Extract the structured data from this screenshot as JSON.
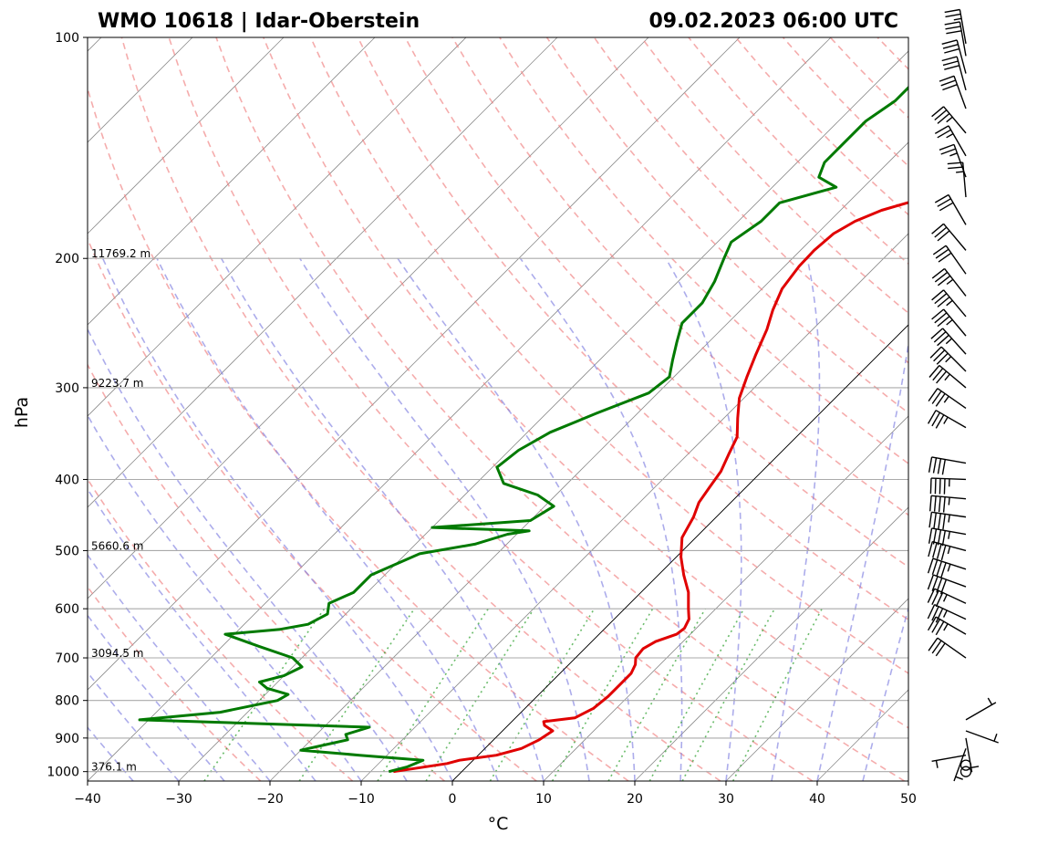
{
  "chart_data": {
    "type": "line",
    "title_left": "WMO 10618 | Idar-Oberstein",
    "title_right": "09.02.2023 06:00 UTC",
    "xlabel": "°C",
    "ylabel": "hPa",
    "xlim": [
      -40,
      50
    ],
    "ylim": [
      1030,
      100
    ],
    "x_ticks": [
      "−40",
      "−30",
      "−20",
      "−10",
      "0",
      "10",
      "20",
      "30",
      "40",
      "50"
    ],
    "x_tick_values": [
      -40,
      -30,
      -20,
      -10,
      0,
      10,
      20,
      30,
      40,
      50
    ],
    "y_ticks": [
      "1000",
      "900",
      "800",
      "700",
      "600",
      "500",
      "400",
      "300",
      "200",
      "100"
    ],
    "y_tick_values": [
      1000,
      900,
      800,
      700,
      600,
      500,
      400,
      300,
      200,
      100
    ],
    "height_labels": [
      {
        "p": 200,
        "text": "11769.2 m"
      },
      {
        "p": 300,
        "text": "9223.7 m"
      },
      {
        "p": 500,
        "text": "5660.6 m"
      },
      {
        "p": 700,
        "text": "3094.5 m"
      },
      {
        "p": 1000,
        "text": "376.1 m"
      }
    ],
    "series": [
      {
        "name": "Temperature",
        "color": "#e00000",
        "points": [
          [
            1000,
            -7.5
          ],
          [
            990,
            -5.5
          ],
          [
            975,
            -2.5
          ],
          [
            965,
            -1.5
          ],
          [
            950,
            2
          ],
          [
            930,
            4
          ],
          [
            905,
            5
          ],
          [
            880,
            5.5
          ],
          [
            865,
            4
          ],
          [
            855,
            3.5
          ],
          [
            845,
            6.5
          ],
          [
            820,
            7.5
          ],
          [
            790,
            7.8
          ],
          [
            760,
            7.8
          ],
          [
            735,
            7.8
          ],
          [
            715,
            7.3
          ],
          [
            700,
            6.6
          ],
          [
            680,
            6.4
          ],
          [
            665,
            7
          ],
          [
            650,
            8.5
          ],
          [
            638,
            8.7
          ],
          [
            620,
            8.2
          ],
          [
            600,
            7
          ],
          [
            570,
            5.2
          ],
          [
            540,
            2.8
          ],
          [
            510,
            0.5
          ],
          [
            480,
            -1.5
          ],
          [
            450,
            -2.5
          ],
          [
            430,
            -3.5
          ],
          [
            410,
            -4
          ],
          [
            390,
            -4.5
          ],
          [
            370,
            -5.5
          ],
          [
            350,
            -6.5
          ],
          [
            330,
            -8.5
          ],
          [
            310,
            -10.5
          ],
          [
            290,
            -12
          ],
          [
            270,
            -13.5
          ],
          [
            250,
            -15
          ],
          [
            235,
            -16.5
          ],
          [
            220,
            -17.8
          ],
          [
            205,
            -18.4
          ],
          [
            195,
            -18.5
          ],
          [
            185,
            -18.2
          ],
          [
            178,
            -17.2
          ],
          [
            172,
            -15.5
          ],
          [
            168,
            -13.5
          ],
          [
            165,
            -9
          ],
          [
            162,
            -5.5
          ],
          [
            158,
            -2.5
          ],
          [
            152,
            -1
          ],
          [
            145,
            0.5
          ],
          [
            138,
            2
          ],
          [
            130,
            3.5
          ],
          [
            122,
            5.5
          ],
          [
            118,
            8
          ],
          [
            115,
            11
          ],
          [
            112,
            13
          ],
          [
            108,
            14.8
          ],
          [
            104,
            15.5
          ],
          [
            100,
            16
          ]
        ]
      },
      {
        "name": "Dewpoint",
        "color": "#007a00",
        "points": [
          [
            1000,
            -8
          ],
          [
            985,
            -6.5
          ],
          [
            965,
            -5.5
          ],
          [
            950,
            -13
          ],
          [
            935,
            -20
          ],
          [
            920,
            -18
          ],
          [
            905,
            -16
          ],
          [
            890,
            -16.8
          ],
          [
            870,
            -15
          ],
          [
            850,
            -41
          ],
          [
            830,
            -33
          ],
          [
            800,
            -28
          ],
          [
            785,
            -27.5
          ],
          [
            770,
            -30.5
          ],
          [
            755,
            -32
          ],
          [
            740,
            -30
          ],
          [
            720,
            -29
          ],
          [
            700,
            -31
          ],
          [
            675,
            -36
          ],
          [
            650,
            -41
          ],
          [
            640,
            -35.5
          ],
          [
            630,
            -33
          ],
          [
            610,
            -32
          ],
          [
            590,
            -33
          ],
          [
            570,
            -31.5
          ],
          [
            540,
            -31.5
          ],
          [
            505,
            -28.5
          ],
          [
            490,
            -23.5
          ],
          [
            475,
            -21
          ],
          [
            470,
            -19
          ],
          [
            465,
            -30
          ],
          [
            455,
            -20
          ],
          [
            435,
            -19
          ],
          [
            420,
            -22
          ],
          [
            405,
            -27
          ],
          [
            385,
            -29.5
          ],
          [
            365,
            -29
          ],
          [
            345,
            -27.5
          ],
          [
            325,
            -24.5
          ],
          [
            305,
            -21
          ],
          [
            290,
            -20.5
          ],
          [
            275,
            -22
          ],
          [
            260,
            -23.5
          ],
          [
            245,
            -25
          ],
          [
            230,
            -25
          ],
          [
            215,
            -26
          ],
          [
            200,
            -27.5
          ],
          [
            190,
            -28.5
          ],
          [
            178,
            -27.5
          ],
          [
            168,
            -27.5
          ],
          [
            160,
            -23
          ],
          [
            155,
            -26
          ],
          [
            148,
            -27
          ],
          [
            140,
            -27
          ],
          [
            130,
            -27
          ],
          [
            122,
            -26
          ],
          [
            115,
            -26
          ],
          [
            108,
            -25
          ],
          [
            103,
            -24
          ],
          [
            100,
            -23.5
          ]
        ]
      }
    ],
    "background_lines": [
      "isotherms",
      "dry adiabats",
      "moist adiabats",
      "mixing ratio lines"
    ],
    "wind_barbs": [
      {
        "p": 1000,
        "knots": 0,
        "dir": 0
      },
      {
        "p": 980,
        "knots": 0,
        "dir": 0
      },
      {
        "p": 950,
        "knots": 5,
        "dir": 260
      },
      {
        "p": 930,
        "knots": 5,
        "dir": 200
      },
      {
        "p": 900,
        "knots": 5,
        "dir": 170
      },
      {
        "p": 880,
        "knots": 5,
        "dir": 110
      },
      {
        "p": 850,
        "knots": 5,
        "dir": 60
      },
      {
        "p": 700,
        "knots": 30,
        "dir": 305
      },
      {
        "p": 650,
        "knots": 35,
        "dir": 300
      },
      {
        "p": 620,
        "knots": 35,
        "dir": 295
      },
      {
        "p": 590,
        "knots": 35,
        "dir": 295
      },
      {
        "p": 560,
        "knots": 40,
        "dir": 290
      },
      {
        "p": 530,
        "knots": 45,
        "dir": 288
      },
      {
        "p": 500,
        "knots": 45,
        "dir": 285
      },
      {
        "p": 475,
        "knots": 45,
        "dir": 280
      },
      {
        "p": 450,
        "knots": 45,
        "dir": 278
      },
      {
        "p": 425,
        "knots": 45,
        "dir": 275
      },
      {
        "p": 400,
        "knots": 45,
        "dir": 272
      },
      {
        "p": 380,
        "knots": 40,
        "dir": 280
      },
      {
        "p": 340,
        "knots": 35,
        "dir": 300
      },
      {
        "p": 320,
        "knots": 35,
        "dir": 305
      },
      {
        "p": 300,
        "knots": 35,
        "dir": 310
      },
      {
        "p": 285,
        "knots": 35,
        "dir": 315
      },
      {
        "p": 270,
        "knots": 35,
        "dir": 318
      },
      {
        "p": 255,
        "knots": 35,
        "dir": 320
      },
      {
        "p": 240,
        "knots": 35,
        "dir": 320
      },
      {
        "p": 225,
        "knots": 35,
        "dir": 322
      },
      {
        "p": 210,
        "knots": 30,
        "dir": 325
      },
      {
        "p": 195,
        "knots": 30,
        "dir": 320
      },
      {
        "p": 180,
        "knots": 30,
        "dir": 330
      },
      {
        "p": 165,
        "knots": 25,
        "dir": 355
      },
      {
        "p": 155,
        "knots": 25,
        "dir": 340
      },
      {
        "p": 145,
        "knots": 25,
        "dir": 330
      },
      {
        "p": 135,
        "knots": 35,
        "dir": 320
      },
      {
        "p": 125,
        "knots": 30,
        "dir": 340
      },
      {
        "p": 118,
        "knots": 30,
        "dir": 345
      },
      {
        "p": 112,
        "knots": 30,
        "dir": 345
      },
      {
        "p": 106,
        "knots": 30,
        "dir": 350
      },
      {
        "p": 102,
        "knots": 25,
        "dir": 350
      }
    ]
  }
}
